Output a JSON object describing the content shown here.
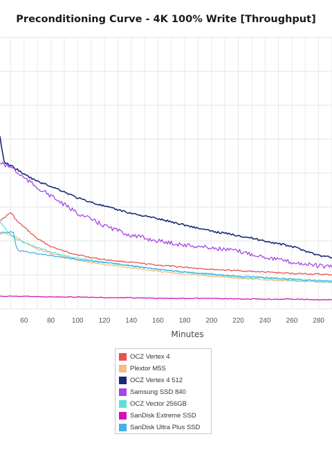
{
  "chart_data": {
    "type": "line",
    "title": "Preconditioning Curve - 4K 100% Write [Throughput]",
    "xlabel": "Minutes",
    "ylabel": "",
    "x_ticks": [
      60,
      80,
      100,
      120,
      140,
      160,
      180,
      200,
      220,
      240,
      260,
      280
    ],
    "x_visible_range": [
      42,
      290
    ],
    "grid": true,
    "legend_position": "bottom-center",
    "series": [
      {
        "name": "OCZ Vertex 4",
        "color": "#e8534f",
        "points": [
          [
            42,
            318
          ],
          [
            45,
            315
          ],
          [
            48,
            310
          ],
          [
            50,
            307
          ],
          [
            52,
            312
          ],
          [
            55,
            320
          ],
          [
            60,
            328
          ],
          [
            70,
            345
          ],
          [
            80,
            356
          ],
          [
            90,
            363
          ],
          [
            100,
            368
          ],
          [
            110,
            372
          ],
          [
            120,
            375
          ],
          [
            140,
            379
          ],
          [
            160,
            383
          ],
          [
            180,
            386
          ],
          [
            200,
            389
          ],
          [
            220,
            391
          ],
          [
            240,
            393
          ],
          [
            260,
            395
          ],
          [
            280,
            396
          ],
          [
            290,
            397
          ]
        ]
      },
      {
        "name": "Plextor M5S",
        "color": "#f2bd86",
        "points": [
          [
            42,
            338
          ],
          [
            45,
            337
          ],
          [
            50,
            340
          ],
          [
            55,
            343
          ],
          [
            60,
            350
          ],
          [
            70,
            360
          ],
          [
            80,
            366
          ],
          [
            90,
            371
          ],
          [
            100,
            376
          ],
          [
            110,
            379
          ],
          [
            120,
            382
          ],
          [
            140,
            387
          ],
          [
            160,
            392
          ],
          [
            180,
            396
          ],
          [
            200,
            399
          ],
          [
            220,
            402
          ],
          [
            240,
            404
          ],
          [
            260,
            406
          ],
          [
            280,
            407
          ],
          [
            290,
            408
          ]
        ]
      },
      {
        "name": "OCZ Vertex 4 512",
        "color": "#1b2a78",
        "points": [
          [
            42,
            197
          ],
          [
            43,
            210
          ],
          [
            44,
            222
          ],
          [
            45,
            232
          ],
          [
            46,
            236
          ],
          [
            50,
            239
          ],
          [
            55,
            245
          ],
          [
            60,
            252
          ],
          [
            70,
            262
          ],
          [
            80,
            269
          ],
          [
            90,
            277
          ],
          [
            100,
            286
          ],
          [
            110,
            292
          ],
          [
            120,
            298
          ],
          [
            140,
            308
          ],
          [
            160,
            316
          ],
          [
            180,
            325
          ],
          [
            200,
            334
          ],
          [
            220,
            340
          ],
          [
            240,
            348
          ],
          [
            260,
            356
          ],
          [
            270,
            362
          ],
          [
            280,
            369
          ],
          [
            290,
            372
          ]
        ]
      },
      {
        "name": "Samsung SSD 840",
        "color": "#a348e6",
        "points": [
          [
            42,
            235
          ],
          [
            44,
            237
          ],
          [
            48,
            240
          ],
          [
            52,
            243
          ],
          [
            55,
            250
          ],
          [
            60,
            257
          ],
          [
            70,
            271
          ],
          [
            80,
            283
          ],
          [
            90,
            296
          ],
          [
            100,
            308
          ],
          [
            110,
            317
          ],
          [
            120,
            326
          ],
          [
            140,
            340
          ],
          [
            160,
            348
          ],
          [
            180,
            354
          ],
          [
            200,
            358
          ],
          [
            220,
            363
          ],
          [
            240,
            371
          ],
          [
            260,
            379
          ],
          [
            280,
            384
          ],
          [
            290,
            386
          ]
        ]
      },
      {
        "name": "OCZ Vector 256GB",
        "color": "#5de0dc",
        "points": [
          [
            42,
            320
          ],
          [
            44,
            325
          ],
          [
            46,
            330
          ],
          [
            48,
            335
          ],
          [
            50,
            339
          ],
          [
            52,
            342
          ],
          [
            55,
            346
          ],
          [
            60,
            350
          ],
          [
            70,
            358
          ],
          [
            80,
            364
          ],
          [
            90,
            369
          ],
          [
            100,
            373
          ],
          [
            120,
            379
          ],
          [
            140,
            384
          ],
          [
            160,
            389
          ],
          [
            180,
            393
          ],
          [
            200,
            397
          ],
          [
            220,
            400
          ],
          [
            240,
            402
          ],
          [
            260,
            405
          ],
          [
            280,
            407
          ],
          [
            290,
            408
          ]
        ]
      },
      {
        "name": "SanDisk Extreme SSD",
        "color": "#d112b6",
        "points": [
          [
            42,
            428
          ],
          [
            60,
            428
          ],
          [
            80,
            429
          ],
          [
            100,
            429
          ],
          [
            120,
            430
          ],
          [
            140,
            430
          ],
          [
            160,
            431
          ],
          [
            180,
            431
          ],
          [
            200,
            431
          ],
          [
            220,
            432
          ],
          [
            240,
            432
          ],
          [
            260,
            432
          ],
          [
            280,
            433
          ],
          [
            290,
            433
          ]
        ]
      },
      {
        "name": "SanDisk Ultra Plus SSD",
        "color": "#41b3e6",
        "points": [
          [
            42,
            337
          ],
          [
            44,
            336
          ],
          [
            48,
            335
          ],
          [
            52,
            335
          ],
          [
            53,
            345
          ],
          [
            54,
            356
          ],
          [
            56,
            362
          ],
          [
            60,
            363
          ],
          [
            70,
            366
          ],
          [
            80,
            369
          ],
          [
            90,
            372
          ],
          [
            100,
            375
          ],
          [
            120,
            379
          ],
          [
            140,
            384
          ],
          [
            160,
            389
          ],
          [
            180,
            393
          ],
          [
            200,
            396
          ],
          [
            220,
            399
          ],
          [
            240,
            401
          ],
          [
            260,
            403
          ],
          [
            280,
            405
          ],
          [
            290,
            406
          ]
        ]
      }
    ],
    "y_axis_note": "y values are relative throughput readings (no tick labels visible)"
  }
}
